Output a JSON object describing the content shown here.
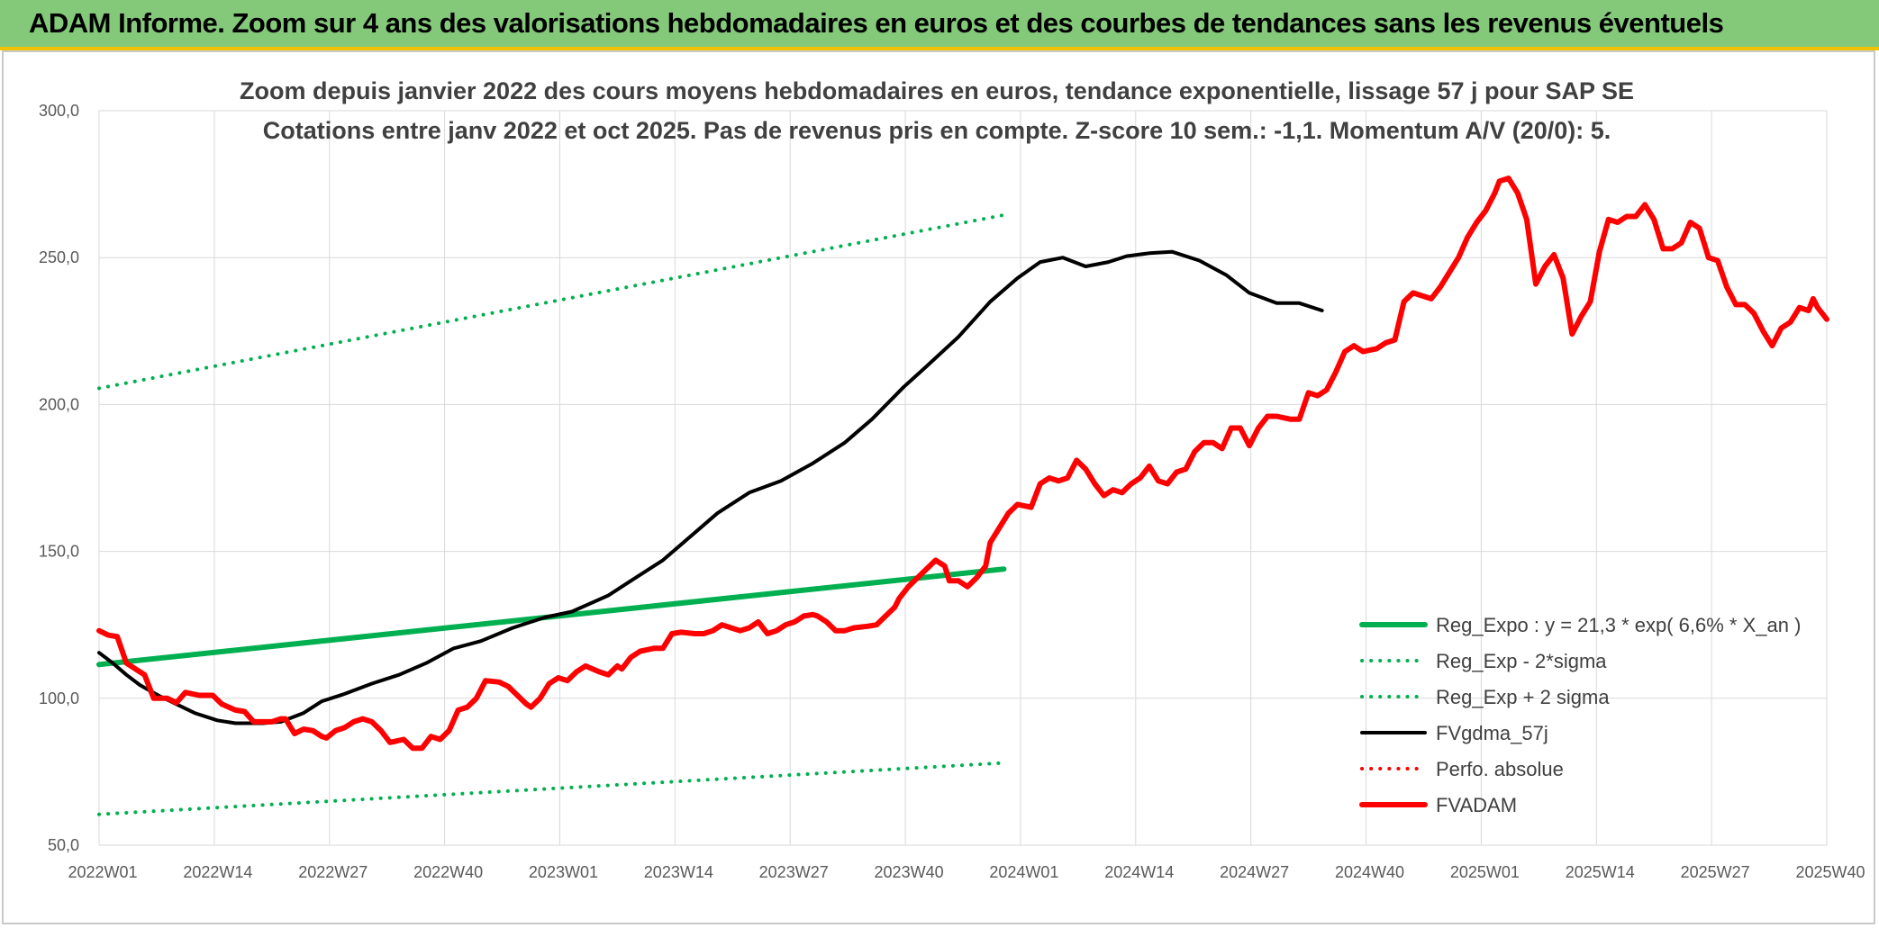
{
  "banner": {
    "title": "ADAM Informe. Zoom sur 4 ans des valorisations hebdomadaires en euros et des courbes de tendances sans les revenus éventuels"
  },
  "colors": {
    "banner_bg": "#84c97a",
    "banner_border": "#f2c200",
    "trend": "#00b050",
    "price": "#ff0000",
    "smooth": "#000000",
    "grid": "#d9d9d9"
  },
  "chart_data": {
    "type": "line",
    "title_lines": [
      "Zoom depuis janvier 2022 des cours moyens hebdomadaires en euros, tendance exponentielle, lissage 57 j pour SAP SE",
      "Cotations entre janv 2022 et oct 2025. Pas de revenus pris en compte. Z-score 10 sem.: -1,1. Momentum A/V (20/0): 5."
    ],
    "ylim": [
      50,
      300
    ],
    "yticks": [
      "300,0",
      "250,0",
      "200,0",
      "150,0",
      "100,0",
      "50,0"
    ],
    "xticks": [
      "2022W01",
      "2022W14",
      "2022W27",
      "2022W40",
      "2023W01",
      "2023W14",
      "2023W27",
      "2023W40",
      "2024W01",
      "2024W14",
      "2024W27",
      "2024W40",
      "2025W01",
      "2025W14",
      "2025W27",
      "2025W40"
    ],
    "grid": "vertical and horizontal",
    "legend_position": "bottom-right",
    "series": [
      {
        "name": "Reg_Expo : y = 21,3 * exp( 6,6% *  X_an )",
        "style": "solid-thick",
        "color": "#00b050",
        "anchors": [
          [
            0,
            111.5
          ],
          [
            199,
            144.0
          ]
        ]
      },
      {
        "name": "Reg_Exp - 2*sigma",
        "style": "dotted",
        "color": "#00b050",
        "anchors": [
          [
            0,
            60.5
          ],
          [
            199,
            78.0
          ]
        ]
      },
      {
        "name": "Reg_Exp + 2 sigma",
        "style": "dotted",
        "color": "#00b050",
        "anchors": [
          [
            0,
            205.5
          ],
          [
            199,
            264.5
          ]
        ]
      },
      {
        "name": "FVgdma_57j",
        "style": "solid",
        "color": "#000000",
        "anchors": [
          [
            0,
            115.5
          ],
          [
            3,
            112
          ],
          [
            6,
            108
          ],
          [
            9,
            104.5
          ],
          [
            13,
            101
          ],
          [
            17,
            98
          ],
          [
            21,
            95
          ],
          [
            26,
            92.5
          ],
          [
            30,
            91.5
          ],
          [
            36,
            91.5
          ],
          [
            40,
            92
          ],
          [
            45,
            95
          ],
          [
            49,
            99
          ],
          [
            54,
            101.5
          ],
          [
            60,
            105
          ],
          [
            66,
            108
          ],
          [
            72,
            112
          ],
          [
            78,
            117
          ],
          [
            84,
            119.5
          ],
          [
            91,
            124
          ],
          [
            98,
            127.5
          ],
          [
            104,
            129.5
          ],
          [
            112,
            135
          ],
          [
            117,
            140
          ],
          [
            124,
            147
          ],
          [
            130,
            155
          ],
          [
            136,
            163
          ],
          [
            143,
            170
          ],
          [
            150,
            174
          ],
          [
            157,
            180
          ],
          [
            164,
            187
          ],
          [
            170,
            195
          ],
          [
            177,
            206
          ],
          [
            182,
            213
          ],
          [
            189,
            223
          ],
          [
            196,
            235
          ],
          [
            202,
            243
          ],
          [
            207,
            248.5
          ],
          [
            212,
            250
          ],
          [
            217,
            247
          ],
          [
            222,
            248.5
          ],
          [
            226,
            250.5
          ],
          [
            231,
            251.5
          ],
          [
            236,
            252
          ],
          [
            242,
            249
          ],
          [
            248,
            244
          ],
          [
            253,
            238
          ],
          [
            259,
            234.5
          ],
          [
            264,
            234.5
          ],
          [
            269,
            232
          ]
        ]
      },
      {
        "name": "Perfo. absolue",
        "style": "dotted",
        "color": "#ff0000",
        "anchors": []
      },
      {
        "name": "FVADAM",
        "style": "solid-thick",
        "color": "#ff0000",
        "anchors": [
          [
            0,
            123
          ],
          [
            2,
            121.5
          ],
          [
            4,
            121
          ],
          [
            6,
            112
          ],
          [
            8,
            110
          ],
          [
            10,
            108
          ],
          [
            12,
            100
          ],
          [
            15,
            100
          ],
          [
            17,
            98.5
          ],
          [
            19,
            102
          ],
          [
            22,
            101
          ],
          [
            25,
            101
          ],
          [
            27,
            98
          ],
          [
            30,
            96
          ],
          [
            32,
            95.5
          ],
          [
            34,
            92
          ],
          [
            38,
            92
          ],
          [
            40,
            93
          ],
          [
            41,
            93
          ],
          [
            43,
            88
          ],
          [
            45,
            89.5
          ],
          [
            47,
            89
          ],
          [
            49,
            87
          ],
          [
            50,
            86.5
          ],
          [
            52,
            89
          ],
          [
            54,
            90
          ],
          [
            56,
            92
          ],
          [
            58,
            93
          ],
          [
            60,
            92
          ],
          [
            62,
            89
          ],
          [
            64,
            85
          ],
          [
            67,
            86
          ],
          [
            69,
            83
          ],
          [
            71,
            83
          ],
          [
            73,
            87
          ],
          [
            75,
            86
          ],
          [
            77,
            89
          ],
          [
            79,
            96
          ],
          [
            81,
            97
          ],
          [
            83,
            100
          ],
          [
            85,
            106
          ],
          [
            88,
            105.5
          ],
          [
            90,
            104
          ],
          [
            92,
            101
          ],
          [
            94,
            98
          ],
          [
            95,
            97
          ],
          [
            97,
            100
          ],
          [
            99,
            105
          ],
          [
            101,
            107
          ],
          [
            103,
            106
          ],
          [
            105,
            109
          ],
          [
            107,
            111
          ],
          [
            110,
            109
          ],
          [
            112,
            108
          ],
          [
            114,
            111
          ],
          [
            115,
            110
          ],
          [
            117,
            114
          ],
          [
            119,
            116
          ],
          [
            122,
            117
          ],
          [
            124,
            117
          ],
          [
            126,
            122
          ],
          [
            128,
            122.5
          ],
          [
            131,
            122
          ],
          [
            133,
            122
          ],
          [
            135,
            123
          ],
          [
            137,
            125
          ],
          [
            139,
            124
          ],
          [
            141,
            123
          ],
          [
            143,
            124
          ],
          [
            145,
            126
          ],
          [
            147,
            122
          ],
          [
            149,
            123
          ],
          [
            151,
            125
          ],
          [
            153,
            126
          ],
          [
            155,
            128
          ],
          [
            157,
            128.5
          ],
          [
            158,
            128
          ],
          [
            160,
            126
          ],
          [
            162,
            123
          ],
          [
            164,
            123
          ],
          [
            166,
            124
          ],
          [
            169,
            124.5
          ],
          [
            171,
            125
          ],
          [
            173,
            128
          ],
          [
            175,
            131
          ],
          [
            176,
            134
          ],
          [
            178,
            138
          ],
          [
            180,
            141
          ],
          [
            182,
            144
          ],
          [
            184,
            147
          ],
          [
            186,
            145
          ],
          [
            187,
            140
          ],
          [
            189,
            140
          ],
          [
            191,
            138
          ],
          [
            193,
            141
          ],
          [
            195,
            145
          ],
          [
            196,
            153
          ],
          [
            198,
            158
          ],
          [
            200,
            163
          ],
          [
            202,
            166
          ],
          [
            205,
            165
          ],
          [
            207,
            173
          ],
          [
            209,
            175
          ],
          [
            211,
            174
          ],
          [
            213,
            175
          ],
          [
            215,
            181
          ],
          [
            217,
            178
          ],
          [
            219,
            173
          ],
          [
            221,
            169
          ],
          [
            223,
            171
          ],
          [
            225,
            170
          ],
          [
            227,
            173
          ],
          [
            229,
            175
          ],
          [
            231,
            179
          ],
          [
            233,
            174
          ],
          [
            235,
            173
          ],
          [
            237,
            177
          ],
          [
            239,
            178
          ],
          [
            241,
            184
          ],
          [
            243,
            187
          ],
          [
            245,
            187
          ],
          [
            247,
            185
          ],
          [
            249,
            192
          ],
          [
            251,
            192
          ],
          [
            253,
            186
          ],
          [
            255,
            192
          ],
          [
            257,
            196
          ],
          [
            259,
            196
          ],
          [
            262,
            195
          ],
          [
            264,
            195
          ],
          [
            266,
            204
          ],
          [
            268,
            203
          ],
          [
            270,
            205
          ],
          [
            272,
            211
          ],
          [
            274,
            218
          ],
          [
            276,
            220
          ],
          [
            278,
            218
          ],
          [
            281,
            219
          ],
          [
            283,
            221
          ],
          [
            285,
            222
          ],
          [
            287,
            235
          ],
          [
            289,
            238
          ],
          [
            291,
            237
          ],
          [
            293,
            236
          ],
          [
            295,
            240
          ],
          [
            297,
            245
          ],
          [
            299,
            250
          ],
          [
            301,
            257
          ],
          [
            303,
            262
          ],
          [
            305,
            266
          ],
          [
            307,
            272
          ],
          [
            308,
            276
          ],
          [
            310,
            277
          ],
          [
            312,
            272
          ],
          [
            314,
            263
          ],
          [
            316,
            241
          ],
          [
            318,
            247
          ],
          [
            320,
            251
          ],
          [
            322,
            243
          ],
          [
            324,
            224
          ],
          [
            326,
            230
          ],
          [
            328,
            235
          ],
          [
            330,
            252
          ],
          [
            332,
            263
          ],
          [
            334,
            262
          ],
          [
            336,
            264
          ],
          [
            338,
            264
          ],
          [
            340,
            268
          ],
          [
            342,
            263
          ],
          [
            344,
            253
          ],
          [
            346,
            253
          ],
          [
            348,
            255
          ],
          [
            350,
            262
          ],
          [
            352,
            260
          ],
          [
            354,
            250
          ],
          [
            356,
            249
          ],
          [
            358,
            240
          ],
          [
            360,
            234
          ],
          [
            362,
            234
          ],
          [
            364,
            231
          ],
          [
            366,
            225
          ],
          [
            368,
            220
          ],
          [
            370,
            226
          ],
          [
            372,
            228
          ],
          [
            374,
            233
          ],
          [
            376,
            232
          ],
          [
            377,
            236
          ],
          [
            378,
            233
          ],
          [
            380,
            229
          ]
        ]
      }
    ]
  }
}
